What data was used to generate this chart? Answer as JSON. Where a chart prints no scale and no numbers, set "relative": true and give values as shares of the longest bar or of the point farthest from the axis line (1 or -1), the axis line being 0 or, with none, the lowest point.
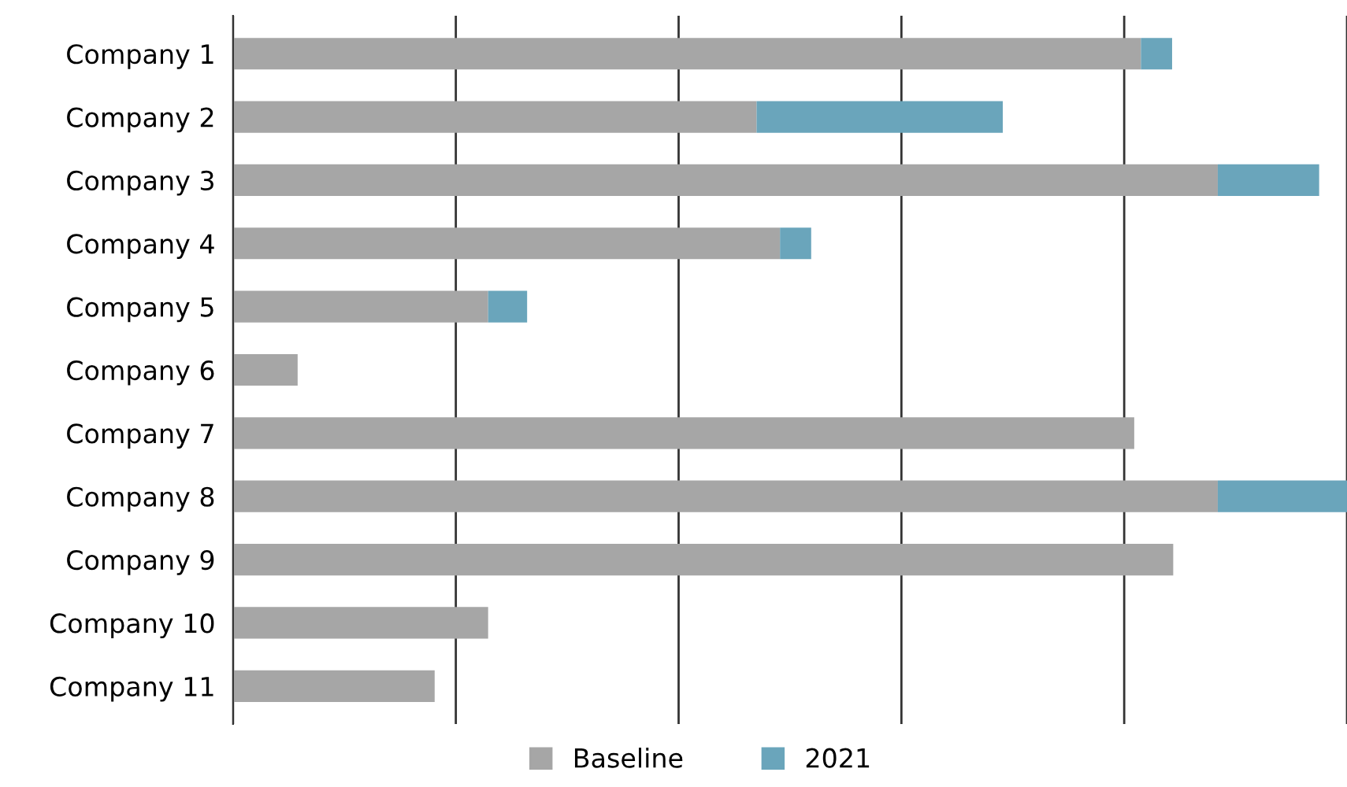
{
  "chart_data": {
    "type": "bar",
    "orientation": "horizontal",
    "stacked": true,
    "relative": true,
    "categories": [
      "Company 1",
      "Company 2",
      "Company 3",
      "Company 4",
      "Company 5",
      "Company 6",
      "Company 7",
      "Company 8",
      "Company 9",
      "Company 10",
      "Company 11"
    ],
    "series": [
      {
        "name": "Baseline",
        "color": "#a6a6a6",
        "values": [
          0.815,
          0.47,
          0.884,
          0.491,
          0.229,
          0.058,
          0.809,
          0.884,
          0.844,
          0.229,
          0.181
        ]
      },
      {
        "name": "2021",
        "color": "#6aa5bb",
        "values": [
          0.028,
          0.221,
          0.091,
          0.028,
          0.035,
          null,
          null,
          0.116,
          null,
          null,
          null
        ]
      }
    ],
    "grid": "x",
    "legend": "bottom"
  }
}
